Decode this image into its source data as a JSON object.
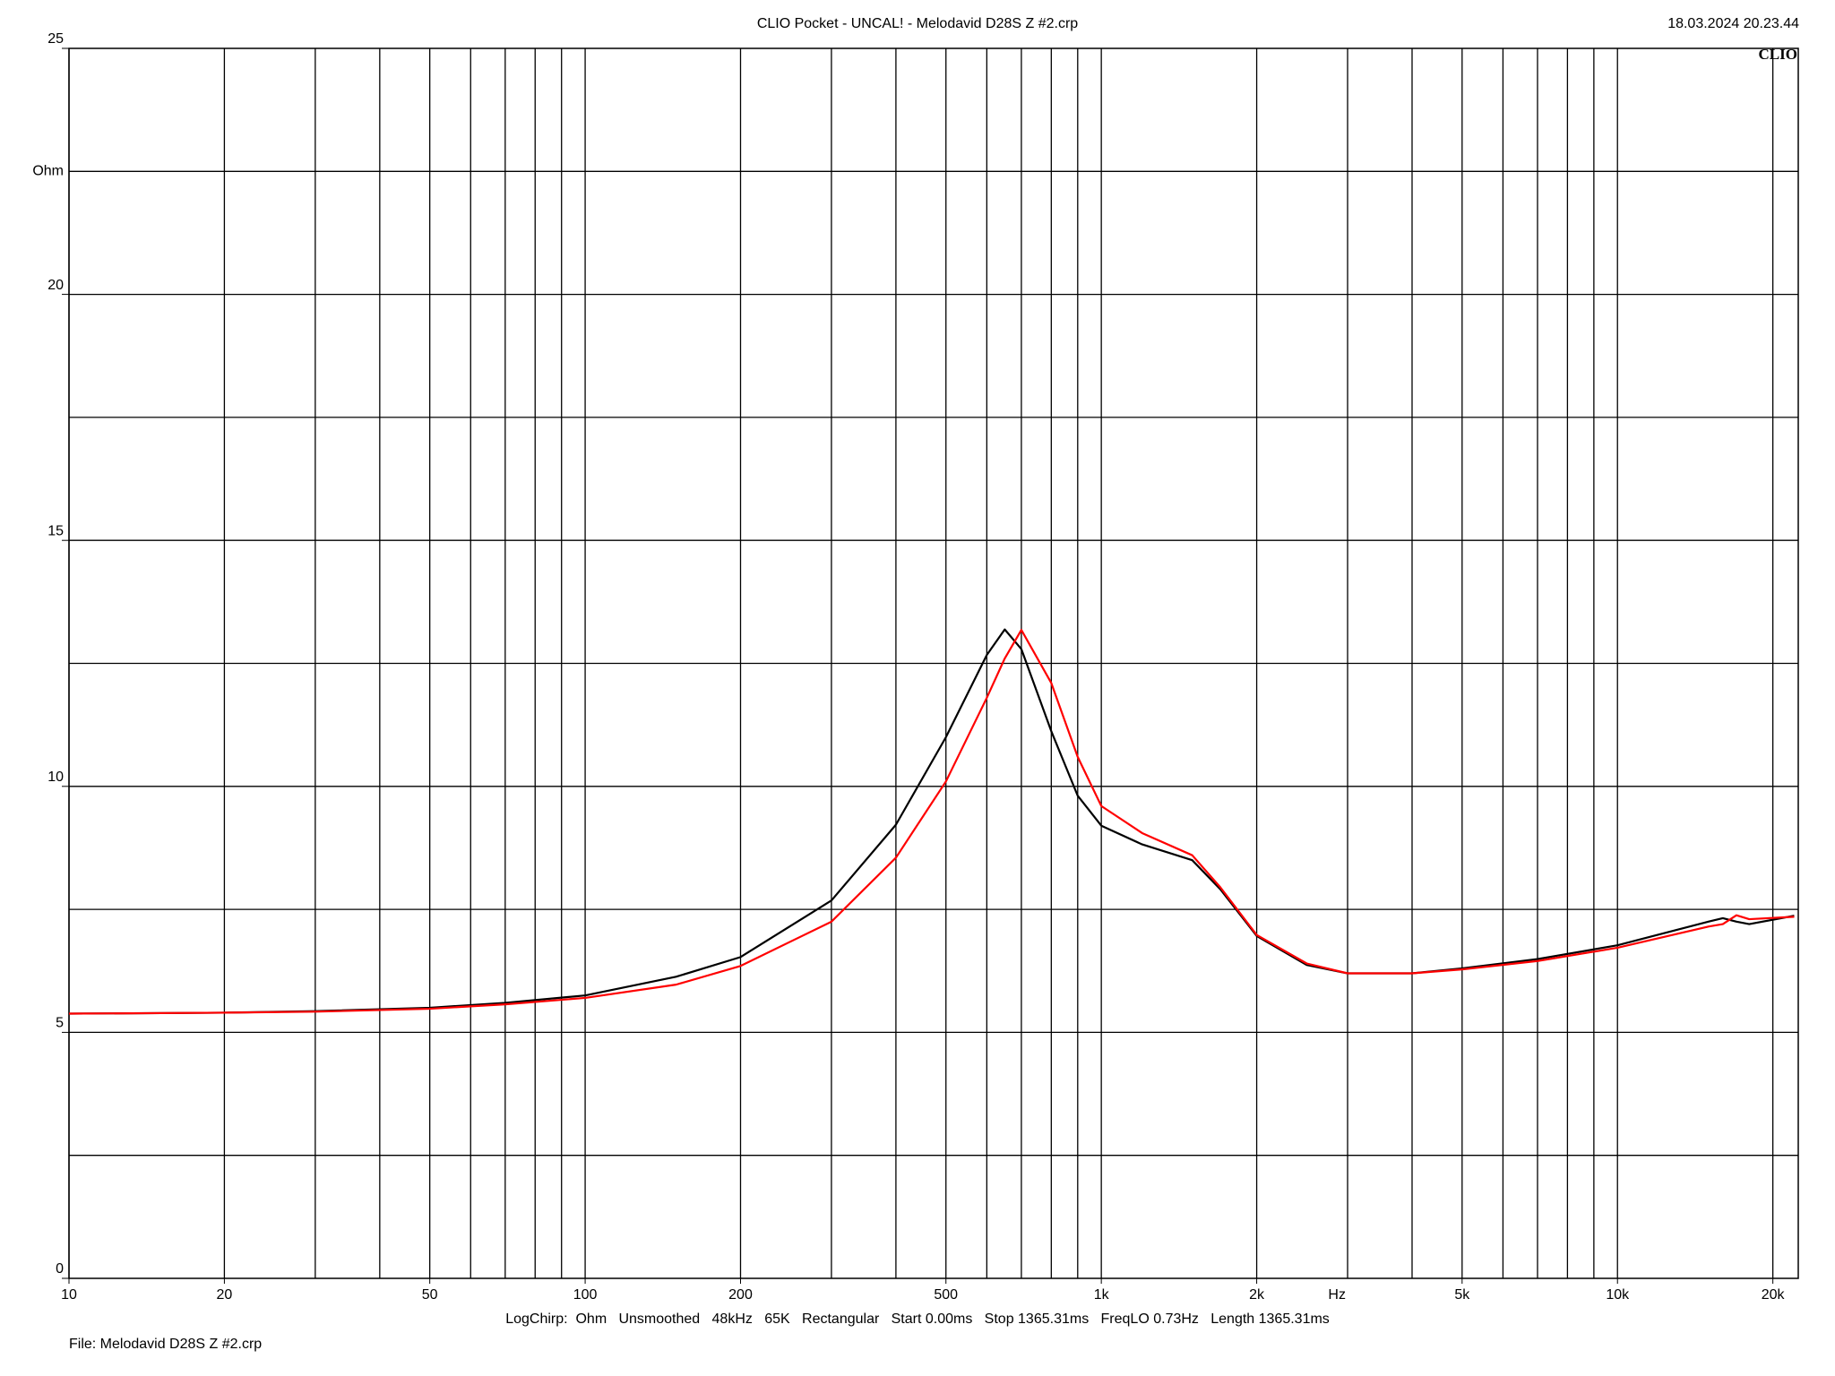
{
  "chart_data": {
    "type": "line",
    "title": "CLIO Pocket - UNCAL! - Melodavid D28S Z #2.crp",
    "timestamp": "18.03.2024 20.23.44",
    "logo": "CLIO",
    "ylabel": "Ohm",
    "xlabel": "Hz",
    "settings_line": "LogChirp:  Ohm   Unsmoothed   48kHz   65K   Rectangular   Start 0.00ms   Stop 1365.31ms   FreqLO 0.73Hz   Length 1365.31ms",
    "file_line": "File: Melodavid D28S Z #2.crp",
    "xscale": "log",
    "grid": true,
    "xlim": [
      10,
      22400
    ],
    "ylim": [
      0,
      25
    ],
    "xticks": [
      10,
      20,
      50,
      100,
      200,
      500,
      {
        "value": 1000,
        "label": "1k"
      },
      {
        "value": 2000,
        "label": "2k"
      },
      {
        "value": 5000,
        "label": "5k"
      },
      {
        "value": 10000,
        "label": "10k"
      },
      {
        "value": 20000,
        "label": "20k"
      }
    ],
    "yticks": [
      0,
      5,
      10,
      15,
      20,
      25
    ],
    "xgrid": [
      10,
      20,
      30,
      40,
      50,
      60,
      70,
      80,
      90,
      100,
      200,
      300,
      400,
      500,
      600,
      700,
      800,
      900,
      1000,
      2000,
      3000,
      4000,
      5000,
      6000,
      7000,
      8000,
      9000,
      10000,
      20000
    ],
    "ygrid": [
      2.5,
      5,
      7.5,
      10,
      12.5,
      15,
      17.5,
      20,
      22.5
    ],
    "x": [
      10,
      20,
      30,
      50,
      70,
      100,
      150,
      200,
      300,
      400,
      500,
      600,
      650,
      700,
      800,
      900,
      1000,
      1200,
      1500,
      1700,
      2000,
      2500,
      3000,
      4000,
      5000,
      7000,
      10000,
      15000,
      16000,
      17000,
      18000,
      22000
    ],
    "series": [
      {
        "color": "#000000",
        "values": [
          5.38,
          5.4,
          5.43,
          5.5,
          5.6,
          5.75,
          6.13,
          6.53,
          7.68,
          9.22,
          11.0,
          12.67,
          13.19,
          12.79,
          11.12,
          9.81,
          9.2,
          8.82,
          8.5,
          7.91,
          6.96,
          6.37,
          6.2,
          6.2,
          6.3,
          6.49,
          6.77,
          7.25,
          7.32,
          7.25,
          7.2,
          7.37
        ]
      },
      {
        "color": "#ff0000",
        "values": [
          5.38,
          5.4,
          5.42,
          5.48,
          5.57,
          5.7,
          5.97,
          6.35,
          7.25,
          8.55,
          10.1,
          11.8,
          12.6,
          13.18,
          12.1,
          10.6,
          9.6,
          9.05,
          8.6,
          7.95,
          6.98,
          6.4,
          6.2,
          6.2,
          6.28,
          6.45,
          6.72,
          7.15,
          7.2,
          7.38,
          7.3,
          7.35
        ]
      }
    ]
  }
}
